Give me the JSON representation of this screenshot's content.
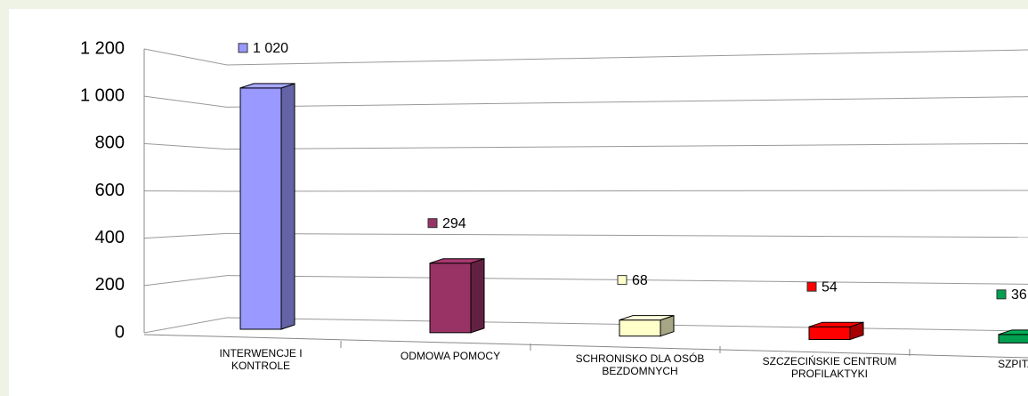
{
  "chart_data": {
    "type": "bar3d",
    "categories": [
      "INTERWENCJE I KONTROLE",
      "ODMOWA POMOCY",
      "SCHRONISKO DLA OSÓB BEZDOMNYCH",
      "SZCZECIŃSKIE CENTRUM PROFILAKTYKI",
      "SZPITAL"
    ],
    "values": [
      1020,
      294,
      68,
      54,
      36
    ],
    "value_labels": [
      "1 020",
      "294",
      "68",
      "54",
      "36"
    ],
    "colors": [
      "#9999ff",
      "#993366",
      "#ffffcc",
      "#ff0000",
      "#00a050"
    ],
    "ylim": [
      0,
      1200
    ],
    "yticks": [
      0,
      200,
      400,
      600,
      800,
      {
        "value": 1000,
        "label": "1 000"
      },
      {
        "value": 1200,
        "label": "1 200"
      }
    ],
    "grid": true
  }
}
